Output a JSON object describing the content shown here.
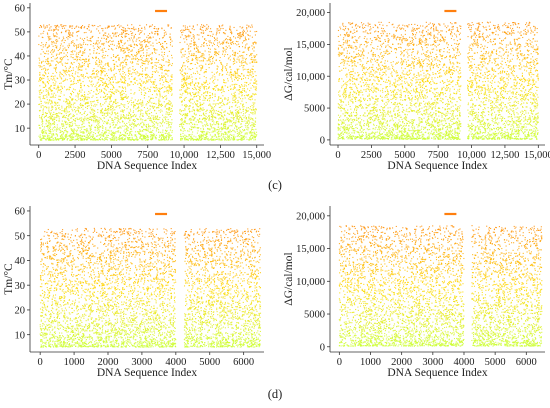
{
  "figure": {
    "panel_labels": [
      "(c)",
      "(d)"
    ]
  },
  "chart_data": [
    {
      "type": "scatter",
      "title": "",
      "xlabel": "DNA Sequence Index",
      "ylabel": "Tm/°C",
      "xlim": [
        -600,
        15500
      ],
      "ylim": [
        3,
        62
      ],
      "x_ticks": [
        0,
        2500,
        5000,
        7500,
        10000,
        12500,
        15000
      ],
      "x_tick_labels": [
        "0",
        "2500",
        "5000",
        "7500",
        "10,000",
        "12,500",
        "15,000"
      ],
      "y_ticks": [
        10,
        20,
        30,
        40,
        50,
        60
      ],
      "y_tick_labels": [
        "10",
        "20",
        "30",
        "40",
        "50",
        "60"
      ],
      "grid": false,
      "legend": {
        "position": "top-center",
        "color": "#ff7f0e"
      },
      "gap": [
        9200,
        9700
      ],
      "n_total": 15000,
      "value_range": [
        5,
        53
      ],
      "color_scale": [
        "#ccff33",
        "#ffd700",
        "#ff8c00"
      ],
      "series": [
        {
          "x_range": [
            0,
            9200
          ],
          "y_range": [
            5,
            53
          ]
        },
        {
          "x_range": [
            9700,
            15000
          ],
          "y_range": [
            5,
            53
          ]
        }
      ]
    },
    {
      "type": "scatter",
      "title": "",
      "xlabel": "DNA Sequence Index",
      "ylabel": "ΔG/cal/mol",
      "xlim": [
        -600,
        15500
      ],
      "ylim": [
        -800,
        21500
      ],
      "x_ticks": [
        0,
        2500,
        5000,
        7500,
        10000,
        12500,
        15000
      ],
      "x_tick_labels": [
        "0",
        "2500",
        "5000",
        "7500",
        "10,000",
        "12,500",
        "15,000"
      ],
      "y_ticks": [
        0,
        5000,
        10000,
        15000,
        20000
      ],
      "y_tick_labels": [
        "0",
        "5000",
        "10,000",
        "15,000",
        "20,000"
      ],
      "grid": false,
      "legend": {
        "position": "top-center",
        "color": "#ff7f0e"
      },
      "gap": [
        9200,
        9700
      ],
      "n_total": 15000,
      "value_range": [
        100,
        18500
      ],
      "color_scale": [
        "#ccff33",
        "#ffd700",
        "#ff8c00"
      ],
      "series": [
        {
          "x_range": [
            0,
            9200
          ],
          "y_range": [
            100,
            18500
          ]
        },
        {
          "x_range": [
            9700,
            15000
          ],
          "y_range": [
            100,
            18500
          ]
        }
      ]
    },
    {
      "type": "scatter",
      "title": "",
      "xlabel": "DNA Sequence Index",
      "ylabel": "Tm/°C",
      "xlim": [
        -300,
        6600
      ],
      "ylim": [
        3,
        62
      ],
      "x_ticks": [
        0,
        1000,
        2000,
        3000,
        4000,
        5000,
        6000
      ],
      "x_tick_labels": [
        "0",
        "1000",
        "2000",
        "3000",
        "4000",
        "5000",
        "6000"
      ],
      "y_ticks": [
        10,
        20,
        30,
        40,
        50,
        60
      ],
      "y_tick_labels": [
        "10",
        "20",
        "30",
        "40",
        "50",
        "60"
      ],
      "grid": false,
      "legend": {
        "position": "top-center",
        "color": "#ff7f0e"
      },
      "gap": [
        4000,
        4250
      ],
      "n_total": 6500,
      "value_range": [
        5,
        53
      ],
      "color_scale": [
        "#ccff33",
        "#ffd700",
        "#ff8c00"
      ],
      "series": [
        {
          "x_range": [
            0,
            4000
          ],
          "y_range": [
            5,
            53
          ]
        },
        {
          "x_range": [
            4250,
            6500
          ],
          "y_range": [
            5,
            53
          ]
        }
      ]
    },
    {
      "type": "scatter",
      "title": "",
      "xlabel": "DNA Sequence Index",
      "ylabel": "ΔG/cal/mol",
      "xlim": [
        -300,
        6600
      ],
      "ylim": [
        -800,
        21500
      ],
      "x_ticks": [
        0,
        1000,
        2000,
        3000,
        4000,
        5000,
        6000
      ],
      "x_tick_labels": [
        "0",
        "1000",
        "2000",
        "3000",
        "4000",
        "5000",
        "6000"
      ],
      "y_ticks": [
        0,
        5000,
        10000,
        15000,
        20000
      ],
      "y_tick_labels": [
        "0",
        "5000",
        "10,000",
        "15,000",
        "20,000"
      ],
      "grid": false,
      "legend": {
        "position": "top-center",
        "color": "#ff7f0e"
      },
      "gap": [
        4000,
        4250
      ],
      "n_total": 6500,
      "value_range": [
        100,
        18500
      ],
      "color_scale": [
        "#ccff33",
        "#ffd700",
        "#ff8c00"
      ],
      "series": [
        {
          "x_range": [
            0,
            4000
          ],
          "y_range": [
            100,
            18500
          ]
        },
        {
          "x_range": [
            4250,
            6500
          ],
          "y_range": [
            100,
            18500
          ]
        }
      ]
    }
  ]
}
